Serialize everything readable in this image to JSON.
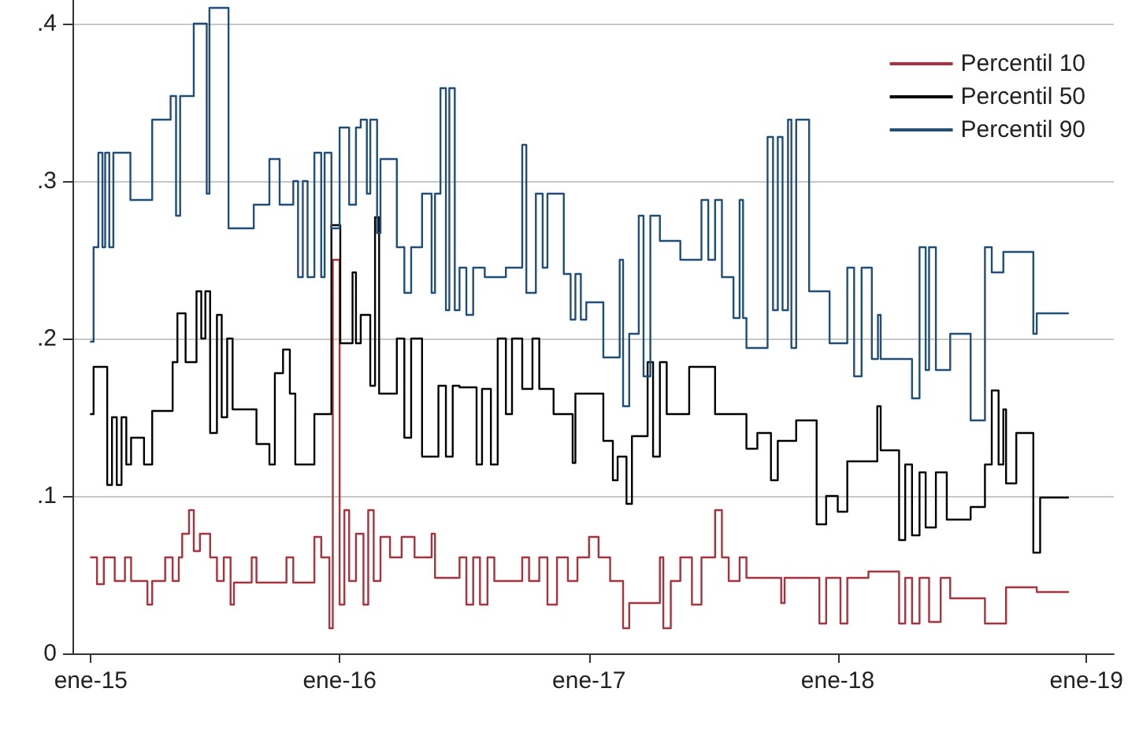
{
  "chart_data": {
    "type": "step",
    "legend": "top right",
    "grid": "y",
    "ylim": [
      0,
      0.415
    ],
    "yticks": [
      0,
      {
        "value": 0.1,
        "label": ".1"
      },
      {
        "value": 0.2,
        "label": ".2"
      },
      {
        "value": 0.3,
        "label": ".3"
      },
      {
        "value": 0.4,
        "label": ".4"
      }
    ],
    "xlim": [
      "2014-12-05",
      "2019-02-10"
    ],
    "xticks": [
      {
        "value": "2015-01-01",
        "label": "ene-15"
      },
      {
        "value": "2016-01-01",
        "label": "ene-16"
      },
      {
        "value": "2017-01-01",
        "label": "ene-17"
      },
      {
        "value": "2018-01-01",
        "label": "ene-18"
      },
      {
        "value": "2019-01-01",
        "label": "ene-19"
      }
    ],
    "series": [
      {
        "name": "Percentil 10",
        "color": "#a8323e",
        "x": [
          "2015-01-01",
          "2015-01-10",
          "2015-01-20",
          "2015-02-05",
          "2015-02-20",
          "2015-03-01",
          "2015-03-25",
          "2015-04-01",
          "2015-04-20",
          "2015-05-01",
          "2015-05-10",
          "2015-05-15",
          "2015-05-25",
          "2015-06-01",
          "2015-06-10",
          "2015-06-25",
          "2015-07-05",
          "2015-07-15",
          "2015-07-25",
          "2015-07-30",
          "2015-08-25",
          "2015-09-01",
          "2015-10-15",
          "2015-10-25",
          "2015-11-25",
          "2015-12-05",
          "2015-12-17",
          "2015-12-22",
          "2016-01-01",
          "2016-01-08",
          "2016-01-15",
          "2016-01-25",
          "2016-02-05",
          "2016-02-12",
          "2016-02-20",
          "2016-03-01",
          "2016-03-15",
          "2016-04-01",
          "2016-04-20",
          "2016-05-15",
          "2016-05-20",
          "2016-06-25",
          "2016-07-05",
          "2016-07-15",
          "2016-07-25",
          "2016-08-05",
          "2016-08-15",
          "2016-09-25",
          "2016-10-05",
          "2016-10-20",
          "2016-11-01",
          "2016-11-15",
          "2016-12-01",
          "2016-12-15",
          "2017-01-01",
          "2017-01-15",
          "2017-02-01",
          "2017-02-20",
          "2017-03-01",
          "2017-04-15",
          "2017-04-20",
          "2017-05-01",
          "2017-05-15",
          "2017-06-01",
          "2017-06-15",
          "2017-07-05",
          "2017-07-15",
          "2017-07-25",
          "2017-08-10",
          "2017-08-20",
          "2017-10-10",
          "2017-10-15",
          "2017-11-20",
          "2017-12-05",
          "2017-12-15",
          "2018-01-05",
          "2018-01-15",
          "2018-02-15",
          "2018-03-20",
          "2018-04-01",
          "2018-04-10",
          "2018-04-20",
          "2018-05-01",
          "2018-05-15",
          "2018-06-01",
          "2018-06-15",
          "2018-07-15",
          "2018-08-05",
          "2018-09-05",
          "2018-10-15",
          "2018-10-20",
          "2018-12-05"
        ],
        "values": [
          0.061,
          0.044,
          0.061,
          0.046,
          0.061,
          0.046,
          0.031,
          0.046,
          0.061,
          0.046,
          0.061,
          0.076,
          0.091,
          0.065,
          0.076,
          0.061,
          0.046,
          0.061,
          0.031,
          0.045,
          0.061,
          0.045,
          0.061,
          0.045,
          0.074,
          0.061,
          0.016,
          0.25,
          0.031,
          0.091,
          0.046,
          0.076,
          0.031,
          0.091,
          0.046,
          0.074,
          0.061,
          0.074,
          0.061,
          0.076,
          0.048,
          0.061,
          0.031,
          0.061,
          0.031,
          0.061,
          0.046,
          0.061,
          0.046,
          0.061,
          0.031,
          0.061,
          0.046,
          0.061,
          0.074,
          0.061,
          0.046,
          0.016,
          0.032,
          0.061,
          0.016,
          0.046,
          0.061,
          0.031,
          0.061,
          0.091,
          0.061,
          0.046,
          0.061,
          0.048,
          0.032,
          0.048,
          0.048,
          0.019,
          0.048,
          0.019,
          0.048,
          0.052,
          0.052,
          0.019,
          0.048,
          0.019,
          0.048,
          0.02,
          0.048,
          0.035,
          0.035,
          0.019,
          0.042,
          0.042,
          0.039,
          0.039
        ]
      },
      {
        "name": "Percentil 50",
        "color": "#000000",
        "x": [
          "2015-01-01",
          "2015-01-05",
          "2015-01-25",
          "2015-02-01",
          "2015-02-08",
          "2015-02-15",
          "2015-02-22",
          "2015-03-01",
          "2015-03-20",
          "2015-04-01",
          "2015-05-01",
          "2015-05-08",
          "2015-05-20",
          "2015-06-05",
          "2015-06-12",
          "2015-06-18",
          "2015-06-25",
          "2015-07-05",
          "2015-07-12",
          "2015-07-20",
          "2015-07-28",
          "2015-09-01",
          "2015-09-20",
          "2015-09-28",
          "2015-10-10",
          "2015-10-20",
          "2015-10-28",
          "2015-11-25",
          "2015-12-20",
          "2016-01-02",
          "2016-01-20",
          "2016-01-25",
          "2016-02-01",
          "2016-02-15",
          "2016-02-22",
          "2016-02-28",
          "2016-03-25",
          "2016-04-05",
          "2016-04-15",
          "2016-05-01",
          "2016-05-25",
          "2016-06-05",
          "2016-06-15",
          "2016-06-25",
          "2016-07-20",
          "2016-07-28",
          "2016-08-10",
          "2016-08-20",
          "2016-09-01",
          "2016-09-10",
          "2016-09-25",
          "2016-10-10",
          "2016-10-20",
          "2016-11-10",
          "2016-12-08",
          "2016-12-12",
          "2017-01-22",
          "2017-02-05",
          "2017-02-12",
          "2017-02-25",
          "2017-03-05",
          "2017-03-28",
          "2017-04-05",
          "2017-04-15",
          "2017-04-25",
          "2017-05-28",
          "2017-07-05",
          "2017-08-20",
          "2017-09-05",
          "2017-09-25",
          "2017-10-05",
          "2017-11-01",
          "2017-12-01",
          "2017-12-15",
          "2018-01-01",
          "2018-01-15",
          "2018-02-28",
          "2018-03-05",
          "2018-04-01",
          "2018-04-10",
          "2018-04-20",
          "2018-05-01",
          "2018-05-10",
          "2018-05-25",
          "2018-06-10",
          "2018-07-15",
          "2018-08-05",
          "2018-08-15",
          "2018-08-25",
          "2018-09-01",
          "2018-09-05",
          "2018-09-20",
          "2018-10-15",
          "2018-10-25",
          "2018-12-05"
        ],
        "values": [
          0.152,
          0.182,
          0.107,
          0.15,
          0.107,
          0.15,
          0.12,
          0.137,
          0.12,
          0.154,
          0.185,
          0.216,
          0.185,
          0.23,
          0.2,
          0.23,
          0.14,
          0.215,
          0.15,
          0.2,
          0.155,
          0.133,
          0.12,
          0.178,
          0.193,
          0.165,
          0.12,
          0.152,
          0.272,
          0.197,
          0.242,
          0.197,
          0.215,
          0.17,
          0.277,
          0.165,
          0.2,
          0.137,
          0.2,
          0.125,
          0.17,
          0.125,
          0.17,
          0.169,
          0.12,
          0.168,
          0.12,
          0.2,
          0.152,
          0.2,
          0.168,
          0.2,
          0.168,
          0.152,
          0.121,
          0.165,
          0.135,
          0.11,
          0.125,
          0.095,
          0.138,
          0.185,
          0.125,
          0.185,
          0.152,
          0.182,
          0.152,
          0.13,
          0.14,
          0.11,
          0.135,
          0.148,
          0.082,
          0.1,
          0.09,
          0.122,
          0.157,
          0.129,
          0.072,
          0.12,
          0.075,
          0.115,
          0.08,
          0.115,
          0.085,
          0.093,
          0.12,
          0.167,
          0.12,
          0.155,
          0.108,
          0.14,
          0.064,
          0.099,
          0.099
        ]
      },
      {
        "name": "Percentil 90",
        "color": "#1f4e79",
        "x": [
          "2015-01-01",
          "2015-01-05",
          "2015-01-12",
          "2015-01-18",
          "2015-01-22",
          "2015-01-28",
          "2015-02-03",
          "2015-02-28",
          "2015-04-01",
          "2015-04-28",
          "2015-05-06",
          "2015-05-12",
          "2015-06-01",
          "2015-06-20",
          "2015-06-24",
          "2015-07-22",
          "2015-08-28",
          "2015-09-20",
          "2015-10-05",
          "2015-10-25",
          "2015-11-01",
          "2015-11-08",
          "2015-11-15",
          "2015-11-25",
          "2015-12-05",
          "2015-12-10",
          "2015-12-20",
          "2016-01-01",
          "2016-01-15",
          "2016-01-25",
          "2016-02-01",
          "2016-02-10",
          "2016-02-15",
          "2016-02-25",
          "2016-03-01",
          "2016-03-25",
          "2016-04-05",
          "2016-04-15",
          "2016-05-01",
          "2016-05-15",
          "2016-05-20",
          "2016-05-28",
          "2016-06-05",
          "2016-06-10",
          "2016-06-18",
          "2016-06-25",
          "2016-07-05",
          "2016-07-15",
          "2016-08-01",
          "2016-09-01",
          "2016-09-25",
          "2016-10-01",
          "2016-10-15",
          "2016-10-25",
          "2016-11-01",
          "2016-11-25",
          "2016-12-05",
          "2016-12-12",
          "2016-12-20",
          "2016-12-28",
          "2017-01-22",
          "2017-02-15",
          "2017-02-20",
          "2017-03-01",
          "2017-03-15",
          "2017-03-22",
          "2017-04-01",
          "2017-04-15",
          "2017-05-15",
          "2017-06-15",
          "2017-06-25",
          "2017-07-05",
          "2017-07-15",
          "2017-08-01",
          "2017-08-10",
          "2017-08-15",
          "2017-08-20",
          "2017-09-20",
          "2017-09-28",
          "2017-10-05",
          "2017-10-12",
          "2017-10-20",
          "2017-10-25",
          "2017-11-01",
          "2017-11-20",
          "2017-12-20",
          "2018-01-15",
          "2018-01-25",
          "2018-02-05",
          "2018-02-20",
          "2018-03-01",
          "2018-03-05",
          "2018-04-20",
          "2018-05-01",
          "2018-05-10",
          "2018-05-15",
          "2018-05-25",
          "2018-06-15",
          "2018-07-15",
          "2018-08-05",
          "2018-08-15",
          "2018-09-01",
          "2018-10-15",
          "2018-10-20",
          "2018-12-05"
        ],
        "values": [
          0.198,
          0.258,
          0.318,
          0.258,
          0.318,
          0.258,
          0.318,
          0.288,
          0.339,
          0.354,
          0.278,
          0.354,
          0.4,
          0.292,
          0.41,
          0.27,
          0.285,
          0.314,
          0.285,
          0.3,
          0.239,
          0.3,
          0.239,
          0.318,
          0.239,
          0.318,
          0.27,
          0.334,
          0.285,
          0.334,
          0.339,
          0.292,
          0.339,
          0.267,
          0.314,
          0.258,
          0.229,
          0.258,
          0.292,
          0.229,
          0.292,
          0.359,
          0.218,
          0.359,
          0.218,
          0.245,
          0.215,
          0.245,
          0.239,
          0.245,
          0.323,
          0.229,
          0.292,
          0.245,
          0.292,
          0.241,
          0.212,
          0.241,
          0.212,
          0.223,
          0.188,
          0.25,
          0.157,
          0.203,
          0.278,
          0.176,
          0.278,
          0.262,
          0.25,
          0.288,
          0.25,
          0.288,
          0.239,
          0.213,
          0.288,
          0.213,
          0.194,
          0.328,
          0.218,
          0.328,
          0.218,
          0.339,
          0.194,
          0.339,
          0.23,
          0.197,
          0.245,
          0.176,
          0.245,
          0.187,
          0.215,
          0.187,
          0.162,
          0.258,
          0.18,
          0.258,
          0.18,
          0.203,
          0.148,
          0.258,
          0.242,
          0.255,
          0.203,
          0.216,
          0.216
        ]
      }
    ]
  }
}
